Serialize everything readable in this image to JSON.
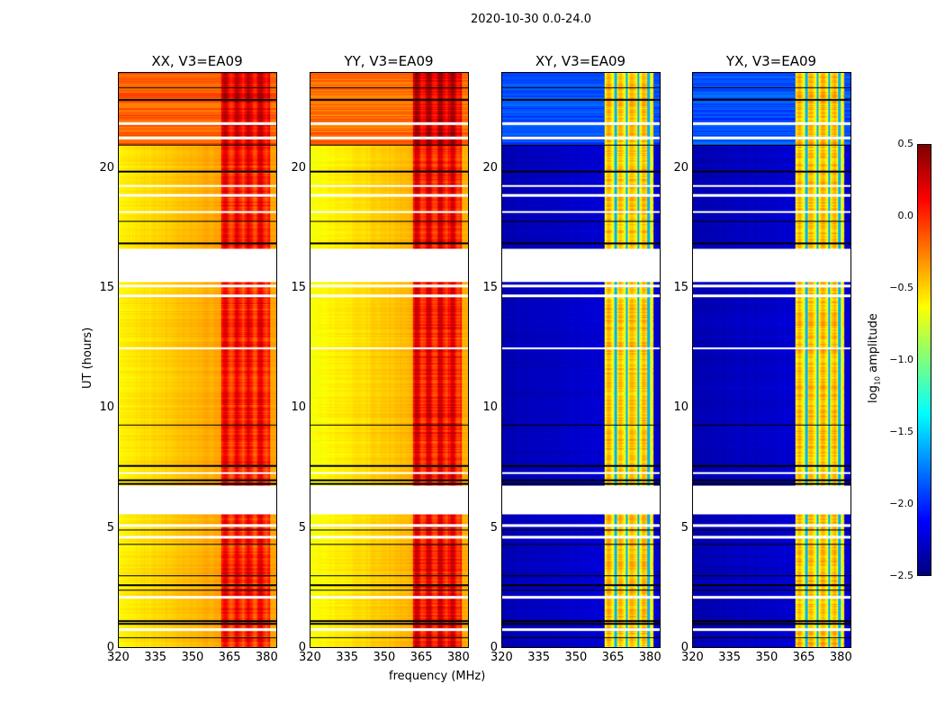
{
  "chart_data": {
    "type": "heatmap",
    "title": "2020-10-30 0.0-24.0",
    "xlabel": "frequency (MHz)",
    "ylabel": "UT (hours)",
    "xlim": [
      320,
      384.4
    ],
    "ylim": [
      0,
      24
    ],
    "xticks": [
      "320",
      "335",
      "350",
      "365",
      "380"
    ],
    "yticks": [
      "0",
      "5",
      "10",
      "15",
      "20"
    ],
    "panels": [
      {
        "title": "XX, V3=EA09",
        "baseline_low": -0.6,
        "baseline_high": -0.35,
        "band_level": 0.05,
        "top_level": -0.15
      },
      {
        "title": "YY, V3=EA09",
        "baseline_low": -0.65,
        "baseline_high": -0.4,
        "band_level": 0.1,
        "top_level": -0.2
      },
      {
        "title": "XY, V3=EA09",
        "baseline_low": -2.35,
        "baseline_high": -2.25,
        "band_level": -0.55,
        "top_level": -1.9
      },
      {
        "title": "YX, V3=EA09",
        "baseline_low": -2.35,
        "baseline_high": -2.25,
        "band_level": -0.55,
        "top_level": -1.9
      }
    ],
    "band_MHz": [
      361.5,
      381.5
    ],
    "flagged_hours": [
      [
        5.55,
        6.75
      ],
      [
        15.3,
        16.65
      ]
    ],
    "colorbar": {
      "label": "log10 amplitude",
      "label_main": "log",
      "label_sub": "10",
      "label_rest": " amplitude",
      "range": [
        -2.5,
        0.5
      ],
      "ticks": [
        "0.5",
        "0.0",
        "−0.5",
        "−1.0",
        "−1.5",
        "−2.0",
        "−2.5"
      ],
      "colormap": "jet"
    }
  }
}
